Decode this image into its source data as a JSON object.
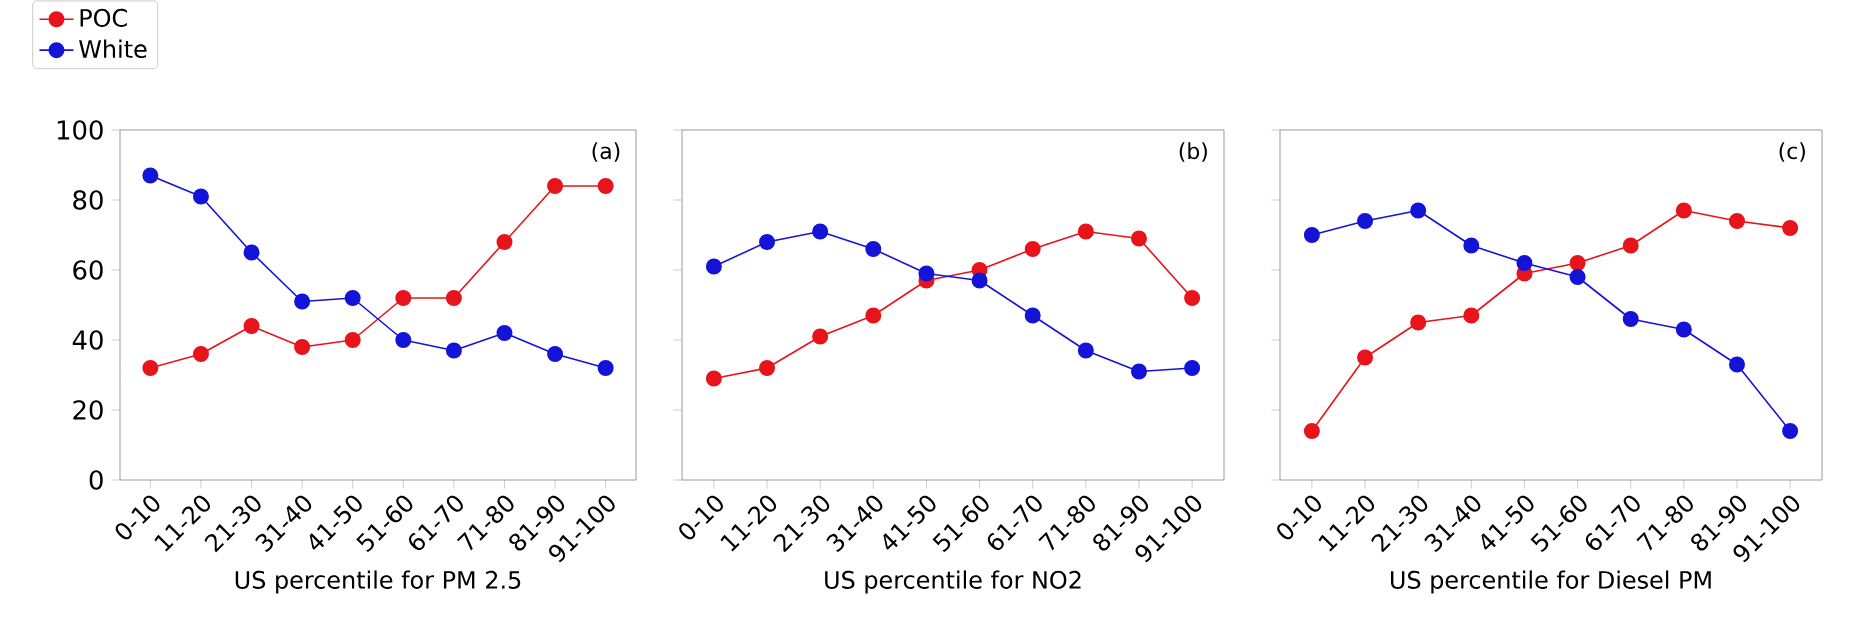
{
  "chart_data": [
    {
      "type": "line",
      "xlabel": "US percentile for PM 2.5",
      "categories": [
        "0-10",
        "11-20",
        "21-30",
        "31-40",
        "41-50",
        "51-60",
        "61-70",
        "71-80",
        "81-90",
        "91-100"
      ],
      "ylim": [
        0,
        100
      ],
      "yticks": [
        0,
        20,
        40,
        60,
        80,
        100
      ],
      "annotations": [
        "(a)"
      ],
      "legend": "top left",
      "marker": "circle",
      "line_style": "solid",
      "grid": false,
      "series": [
        {
          "name": "POC",
          "color": "#e8141b",
          "values": [
            32,
            36,
            44,
            38,
            40,
            52,
            52,
            68,
            84,
            84
          ]
        },
        {
          "name": "White",
          "color": "#1414d8",
          "values": [
            87,
            81,
            65,
            51,
            52,
            40,
            37,
            42,
            36,
            32
          ]
        }
      ]
    },
    {
      "type": "line",
      "xlabel": "US percentile for NO2",
      "categories": [
        "0-10",
        "11-20",
        "21-30",
        "31-40",
        "41-50",
        "51-60",
        "61-70",
        "71-80",
        "81-90",
        "91-100"
      ],
      "ylim": [
        0,
        100
      ],
      "yticks": [
        0,
        20,
        40,
        60,
        80,
        100
      ],
      "tick_labels": "x",
      "annotations": [
        "(b)"
      ],
      "marker": "circle",
      "line_style": "solid",
      "grid": false,
      "series": [
        {
          "color": "#e8141b",
          "values": [
            29,
            32,
            41,
            47,
            57,
            60,
            66,
            71,
            69,
            52
          ]
        },
        {
          "color": "#1414d8",
          "values": [
            61,
            68,
            71,
            66,
            59,
            57,
            47,
            37,
            31,
            32
          ]
        }
      ]
    },
    {
      "type": "line",
      "xlabel": "US percentile for Diesel PM",
      "categories": [
        "0-10",
        "11-20",
        "21-30",
        "31-40",
        "41-50",
        "51-60",
        "61-70",
        "71-80",
        "81-90",
        "91-100"
      ],
      "ylim": [
        0,
        100
      ],
      "yticks": [
        0,
        20,
        40,
        60,
        80,
        100
      ],
      "tick_labels": "x",
      "annotations": [
        "(c)"
      ],
      "marker": "circle",
      "line_style": "solid",
      "grid": false,
      "series": [
        {
          "color": "#e8141b",
          "values": [
            14,
            35,
            45,
            47,
            59,
            62,
            67,
            77,
            74,
            72
          ]
        },
        {
          "color": "#1414d8",
          "values": [
            70,
            74,
            77,
            67,
            62,
            58,
            46,
            43,
            33,
            14
          ]
        }
      ]
    }
  ]
}
